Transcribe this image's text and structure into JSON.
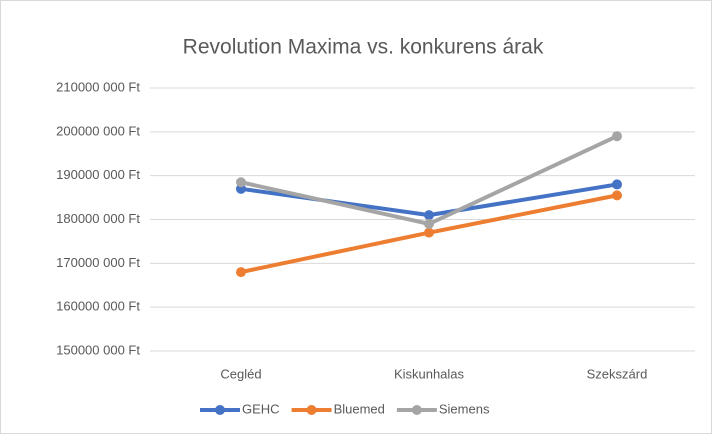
{
  "chart_data": {
    "type": "line",
    "title": "Revolution Maxima vs. konkurens árak",
    "categories": [
      "Cegléd",
      "Kiskunhalas",
      "Szekszárd"
    ],
    "series": [
      {
        "name": "GEHC",
        "color": "#4472c4",
        "values": [
          187000000,
          181000000,
          188000000
        ]
      },
      {
        "name": "Bluemed",
        "color": "#ed7d31",
        "values": [
          168000000,
          177000000,
          185500000
        ]
      },
      {
        "name": "Siemens",
        "color": "#a5a5a5",
        "values": [
          188500000,
          179000000,
          199000000
        ]
      }
    ],
    "ylim": [
      150000000,
      210000000
    ],
    "yticks": [
      {
        "value": 150000000,
        "label": "150000 000 Ft"
      },
      {
        "value": 160000000,
        "label": "160000 000 Ft"
      },
      {
        "value": 170000000,
        "label": "170000 000 Ft"
      },
      {
        "value": 180000000,
        "label": "180000 000 Ft"
      },
      {
        "value": 190000000,
        "label": "190000 000 Ft"
      },
      {
        "value": 200000000,
        "label": "200000 000 Ft"
      },
      {
        "value": 210000000,
        "label": "210000 000 Ft"
      }
    ],
    "grid": true,
    "legend": "bottom"
  }
}
